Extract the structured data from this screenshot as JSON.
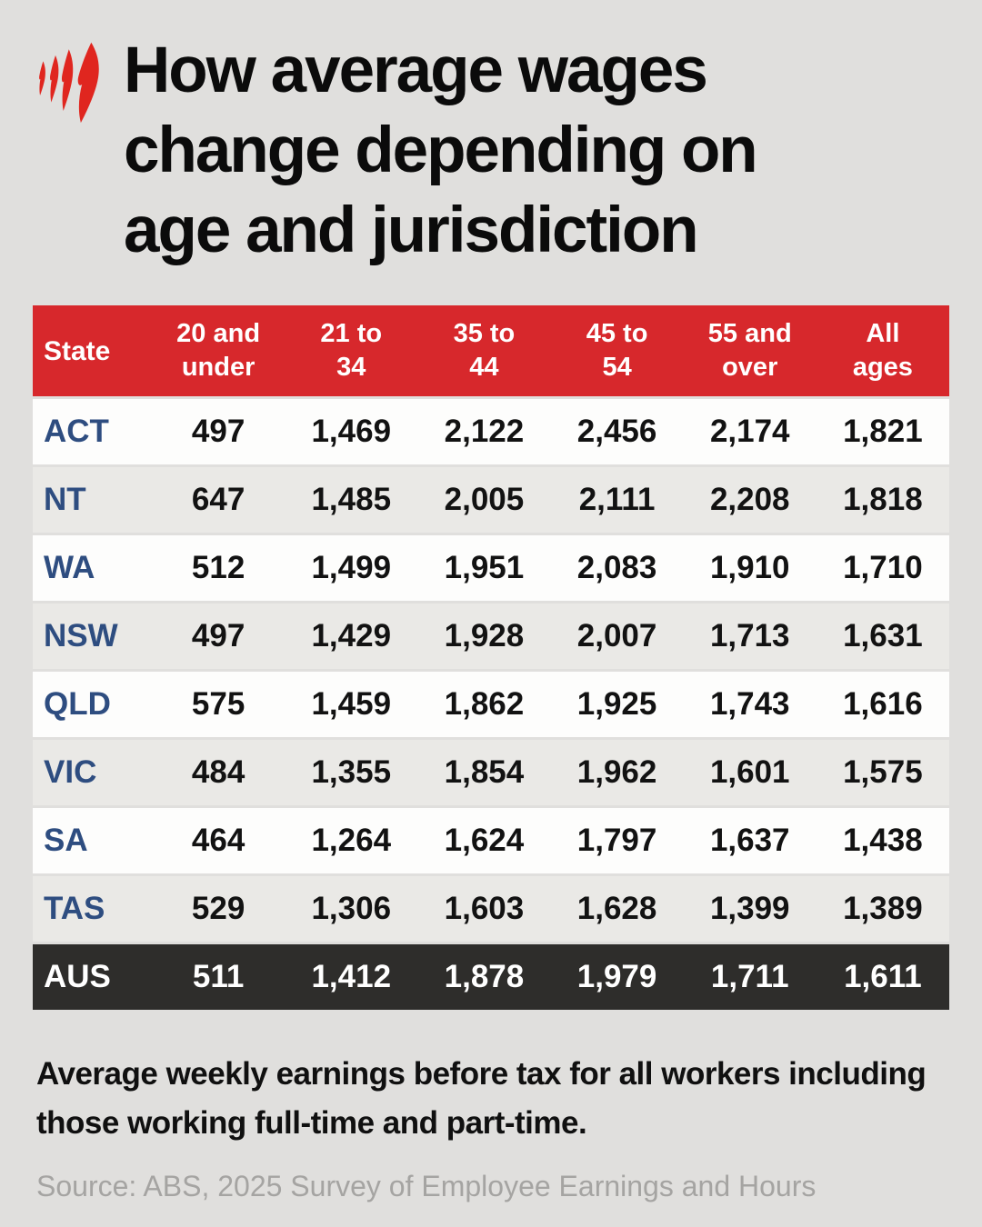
{
  "brand": {
    "logo_icon": "sbs-logo"
  },
  "title_lines": {
    "line1": "How average wages",
    "line2": "change depending on",
    "line3": "age and jurisdiction"
  },
  "chart_data": {
    "type": "table",
    "title": "How average wages change depending on age and jurisdiction",
    "columns": [
      "State",
      "20 and\nunder",
      "21 to\n34",
      "35 to\n44",
      "45 to\n54",
      "55 and\nover",
      "All\nages"
    ],
    "rows": [
      [
        "ACT",
        497,
        1469,
        2122,
        2456,
        2174,
        1821
      ],
      [
        "NT",
        647,
        1485,
        2005,
        2111,
        2208,
        1818
      ],
      [
        "WA",
        512,
        1499,
        1951,
        2083,
        1910,
        1710
      ],
      [
        "NSW",
        497,
        1429,
        1928,
        2007,
        1713,
        1631
      ],
      [
        "QLD",
        575,
        1459,
        1862,
        1925,
        1743,
        1616
      ],
      [
        "VIC",
        484,
        1355,
        1854,
        1962,
        1601,
        1575
      ],
      [
        "SA",
        464,
        1264,
        1624,
        1797,
        1637,
        1438
      ],
      [
        "TAS",
        529,
        1306,
        1603,
        1628,
        1399,
        1389
      ]
    ],
    "total_row": [
      "AUS",
      511,
      1412,
      1878,
      1979,
      1711,
      1611
    ]
  },
  "note": "Average weekly earnings before tax for all workers including those working full-time and part-time.",
  "source": "Source: ABS, 2025 Survey of Employee Earnings and Hours",
  "colors": {
    "logo_red": "#e0261f",
    "header_red": "#d7282c",
    "row_white": "#fdfdfc",
    "row_gray": "#eae9e6",
    "total_dark": "#2e2d2b",
    "state_blue": "#2e4d80",
    "source_gray": "#a5a4a2",
    "background": "#e0dfdd"
  }
}
